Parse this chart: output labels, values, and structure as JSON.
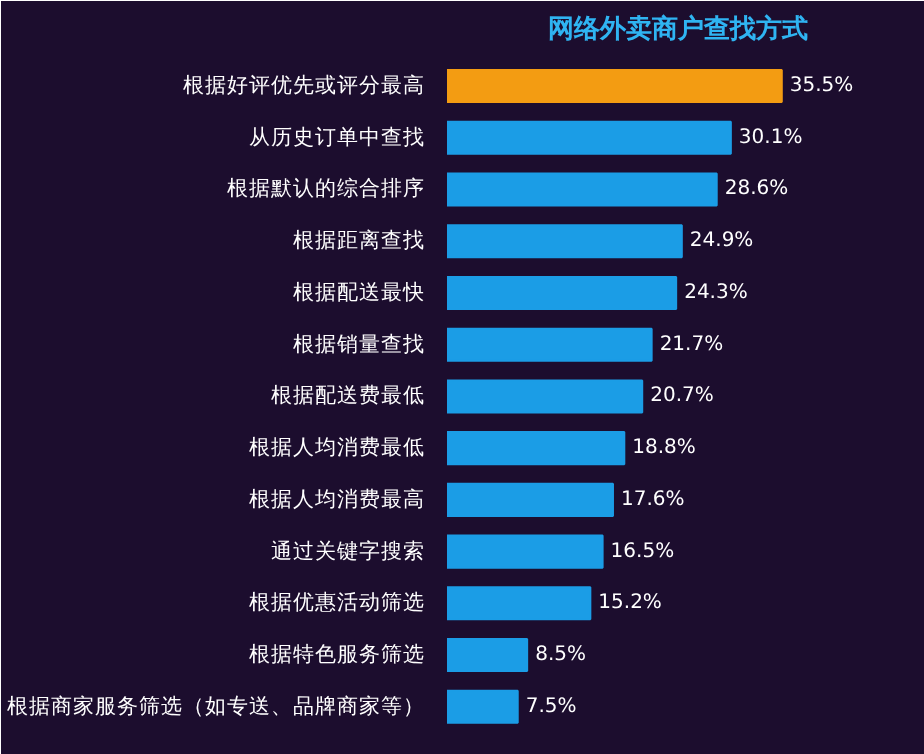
{
  "chart_data": {
    "type": "bar",
    "orientation": "horizontal",
    "title": "网络外卖商户查找方式",
    "categories": [
      "根据好评优先或评分最高",
      "从历史订单中查找",
      "根据默认的综合排序",
      "根据距离查找",
      "根据配送最快",
      "根据销量查找",
      "根据配送费最低",
      "根据人均消费最低",
      "根据人均消费最高",
      "通过关键字搜索",
      "根据优惠活动筛选",
      "根据特色服务筛选",
      "根据商家服务筛选（如专送、品牌商家等）"
    ],
    "values": [
      35.5,
      30.1,
      28.6,
      24.9,
      24.3,
      21.7,
      20.7,
      18.8,
      17.6,
      16.5,
      15.2,
      8.5,
      7.5
    ],
    "colors": [
      "#f39c12",
      "#1b9de6",
      "#1b9de6",
      "#1b9de6",
      "#1b9de6",
      "#1b9de6",
      "#1b9de6",
      "#1b9de6",
      "#1b9de6",
      "#1b9de6",
      "#1b9de6",
      "#1b9de6",
      "#1b9de6"
    ],
    "value_labels": [
      "35.5%",
      "30.1%",
      "28.6%",
      "24.9%",
      "24.3%",
      "21.7%",
      "20.7%",
      "18.8%",
      "17.6%",
      "16.5%",
      "15.2%",
      "8.5%",
      "7.5%"
    ],
    "grid": false
  }
}
